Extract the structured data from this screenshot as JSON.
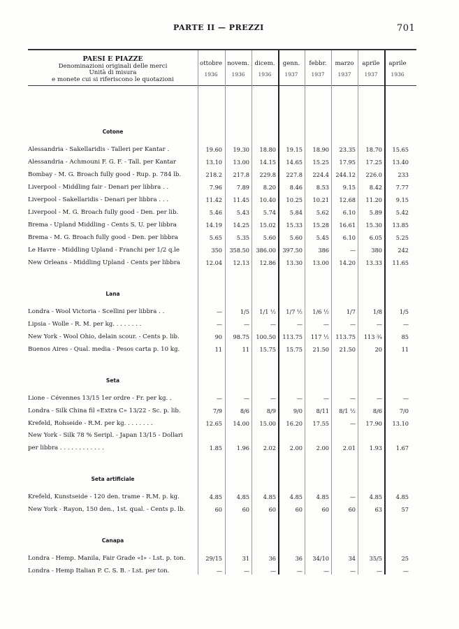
{
  "page_header": {
    "title": "PARTE II — PREZZI",
    "page_number": "701"
  },
  "column_header": {
    "label_lines": [
      "PAESI E PIAZZE",
      "Denominazioni originali delle merci",
      "Unità di misura",
      "e monete cui si riferiscono le quotazioni"
    ],
    "columns": [
      {
        "month": "ottobre",
        "year": "1936"
      },
      {
        "month": "novem.",
        "year": "1936"
      },
      {
        "month": "dicem.",
        "year": "1936"
      },
      {
        "month": "genn.",
        "year": "1937"
      },
      {
        "month": "febbr.",
        "year": "1937"
      },
      {
        "month": "marzo",
        "year": "1937"
      },
      {
        "month": "aprile",
        "year": "1937"
      },
      {
        "month": "aprile",
        "year": "1936"
      }
    ]
  },
  "sections": [
    {
      "title": "Cotone",
      "rows": [
        {
          "name": "Alessandria - Sakellaridis - Talleri per Kantar .",
          "values": [
            "19.60",
            "19.30",
            "18.80",
            "19.15",
            "18.90",
            "23.35",
            "18.70",
            "15.65"
          ]
        },
        {
          "name": "Alessandria - Achmouni F. G. F. - Tall. per Kantar",
          "values": [
            "13.10",
            "13.00",
            "14.15",
            "14.65",
            "15.25",
            "17.95",
            "17.25",
            "13.40"
          ]
        },
        {
          "name": "Bombay - M. G. Broach fully good - Rup. p. 784 lb.",
          "values": [
            "218.2",
            "217.8",
            "229.8",
            "227.8",
            "224.4",
            "244.12",
            "226.0",
            "233"
          ]
        },
        {
          "name": "Liverpool - Middling fair - Denari per libbra . .",
          "values": [
            "7.96",
            "7.89",
            "8.20",
            "8.46",
            "8.53",
            "9.15",
            "8.42",
            "7.77"
          ]
        },
        {
          "name": "Liverpool - Sakellaridis - Denari per libbra . . .",
          "values": [
            "11.42",
            "11.45",
            "10.40",
            "10.25",
            "10.21",
            "12.68",
            "11.20",
            "9.15"
          ]
        },
        {
          "name": "Liverpool - M. G. Broach fully good - Den. per lib.",
          "values": [
            "5.46",
            "5.43",
            "5.74",
            "5.84",
            "5.62",
            "6.10",
            "5.89",
            "5.42"
          ]
        },
        {
          "name": "Brema - Upland Middling - Cents S. U. per libbra",
          "values": [
            "14.19",
            "14.25",
            "15.02",
            "15.33",
            "15.28",
            "16.61",
            "15.30",
            "13.85"
          ]
        },
        {
          "name": "Brema - M. G. Broach fully good - Den. per libbra",
          "values": [
            "5.65",
            "5.35",
            "5.60",
            "5.60",
            "5.45",
            "6.10",
            "6.05",
            "5.25"
          ]
        },
        {
          "name": "Le Havre - Middling Upland - Franchi per 1/2 q.le",
          "values": [
            "350",
            "358.50",
            "386.00",
            "397.50",
            "386",
            "—",
            "380",
            "242"
          ]
        },
        {
          "name": "New Orleans - Middling Upland - Cents per libbra",
          "values": [
            "12.04",
            "12.13",
            "12.86",
            "13.30",
            "13.00",
            "14.20",
            "13.33",
            "11.65"
          ]
        }
      ]
    },
    {
      "title": "Lana",
      "rows": [
        {
          "name": "Londra - Wool Victoria - Scellini per libbra . .",
          "values": [
            "—",
            "1/5",
            "1/1 ½",
            "1/7 ½",
            "1/6 ½",
            "1/7",
            "1/8",
            "1/5"
          ]
        },
        {
          "name": "Lipsia - Wolle - R. M. per kg. . . . . . . .",
          "values": [
            "—",
            "—",
            "—",
            "—",
            "—",
            "—",
            "—",
            "—"
          ]
        },
        {
          "name": "New York - Wool Ohio, delain scour. - Cents p. lib.",
          "values": [
            "90",
            "98.75",
            "100.50",
            "113.75",
            "117 ½",
            "113.75",
            "113 ¾",
            "85"
          ]
        },
        {
          "name": "Buenos Aires - Qual. media - Pesos carta p. 10 kg.",
          "values": [
            "11",
            "11",
            "15.75",
            "15.75",
            "21.50",
            "21.50",
            "20",
            "11"
          ]
        }
      ]
    },
    {
      "title": "Seta",
      "rows": [
        {
          "name": "Lione - Cévennes 13/15 1er ordre - Fr. per kg. .",
          "values": [
            "—",
            "—",
            "—",
            "—",
            "—",
            "—",
            "—",
            "—"
          ]
        },
        {
          "name": "Londra - Silk China fil «Extra C» 13/22 - Sc. p. lib.",
          "values": [
            "7/9",
            "8/6",
            "8/9",
            "9/0",
            "8/11",
            "8/1 ½",
            "8/6",
            "7/0"
          ]
        },
        {
          "name": "Krefeld, Rohseide - R.M. per kg. . . . . . . .",
          "values": [
            "12.65",
            "14.00",
            "15.00",
            "16.20",
            "17.55",
            "—",
            "17.90",
            "13.10"
          ]
        },
        {
          "name": "New York - Silk 78 % Seripl. - Japan 13/15 - Dollari per libbra . . . . . . . . . . . .",
          "values": [
            "1.85",
            "1.96",
            "2.02",
            "2.00",
            "2.00",
            "2.01",
            "1.93",
            "1.67"
          ],
          "tall": true
        }
      ]
    },
    {
      "title": "Seta artificiale",
      "rows": [
        {
          "name": "Krefeld, Kunstseide - 120 den. trame - R.M. p. kg.",
          "values": [
            "4.85",
            "4.85",
            "4.85",
            "4.85",
            "4.85",
            "—",
            "4.85",
            "4.85"
          ]
        },
        {
          "name": "New York - Rayon, 150 den., 1st. qual. - Cents p. lb.",
          "values": [
            "60",
            "60",
            "60",
            "60",
            "60",
            "60",
            "63",
            "57"
          ]
        }
      ]
    },
    {
      "title": "Canapa",
      "rows": [
        {
          "name": "Londra - Hemp. Manila, Fair Grade «I» - Lst. p. ton.",
          "values": [
            "29/15",
            "31",
            "36",
            "36",
            "34/10",
            "34",
            "35/5",
            "25"
          ]
        },
        {
          "name": "Londra - Hemp Italian P. C. S. B. - Lst. per ton.",
          "values": [
            "—",
            "—",
            "—",
            "—",
            "—",
            "—",
            "—",
            "—"
          ]
        }
      ]
    }
  ]
}
